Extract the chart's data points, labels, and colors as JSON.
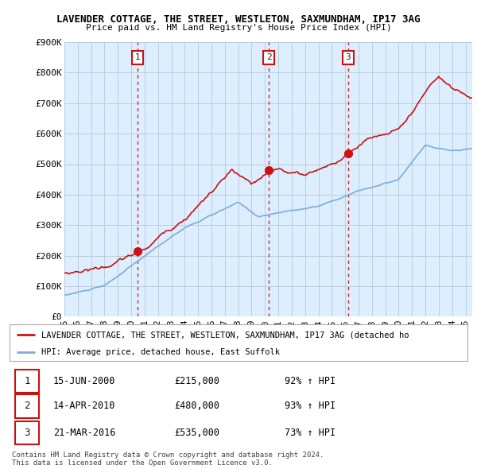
{
  "title1": "LAVENDER COTTAGE, THE STREET, WESTLETON, SAXMUNDHAM, IP17 3AG",
  "title2": "Price paid vs. HM Land Registry's House Price Index (HPI)",
  "xmin": 1995.0,
  "xmax": 2025.5,
  "ymin": 0,
  "ymax": 900000,
  "yticks": [
    0,
    100000,
    200000,
    300000,
    400000,
    500000,
    600000,
    700000,
    800000,
    900000
  ],
  "ytick_labels": [
    "£0",
    "£100K",
    "£200K",
    "£300K",
    "£400K",
    "£500K",
    "£600K",
    "£700K",
    "£800K",
    "£900K"
  ],
  "xtick_years": [
    1995,
    1996,
    1997,
    1998,
    1999,
    2000,
    2001,
    2002,
    2003,
    2004,
    2005,
    2006,
    2007,
    2008,
    2009,
    2010,
    2011,
    2012,
    2013,
    2014,
    2015,
    2016,
    2017,
    2018,
    2019,
    2020,
    2021,
    2022,
    2023,
    2024,
    2025
  ],
  "xtick_labels": [
    "95",
    "96",
    "97",
    "98",
    "99",
    "00",
    "01",
    "02",
    "03",
    "04",
    "05",
    "06",
    "07",
    "08",
    "09",
    "10",
    "11",
    "12",
    "13",
    "14",
    "15",
    "16",
    "17",
    "18",
    "19",
    "20",
    "21",
    "22",
    "23",
    "24",
    "25"
  ],
  "sale_dates": [
    2000.46,
    2010.29,
    2016.22
  ],
  "sale_prices": [
    215000,
    480000,
    535000
  ],
  "sale_labels": [
    "1",
    "2",
    "3"
  ],
  "sale_date_strs": [
    "15-JUN-2000",
    "14-APR-2010",
    "21-MAR-2016"
  ],
  "sale_price_strs": [
    "£215,000",
    "£480,000",
    "£535,000"
  ],
  "sale_hpi_strs": [
    "92% ↑ HPI",
    "93% ↑ HPI",
    "73% ↑ HPI"
  ],
  "hpi_color": "#7aaddb",
  "price_color": "#cc1111",
  "vline_color": "#cc1111",
  "plot_bg_color": "#ddeeff",
  "background_color": "#ffffff",
  "grid_color": "#bbccdd",
  "legend_label_red": "LAVENDER COTTAGE, THE STREET, WESTLETON, SAXMUNDHAM, IP17 3AG (detached ho",
  "legend_label_blue": "HPI: Average price, detached house, East Suffolk",
  "footer1": "Contains HM Land Registry data © Crown copyright and database right 2024.",
  "footer2": "This data is licensed under the Open Government Licence v3.0."
}
